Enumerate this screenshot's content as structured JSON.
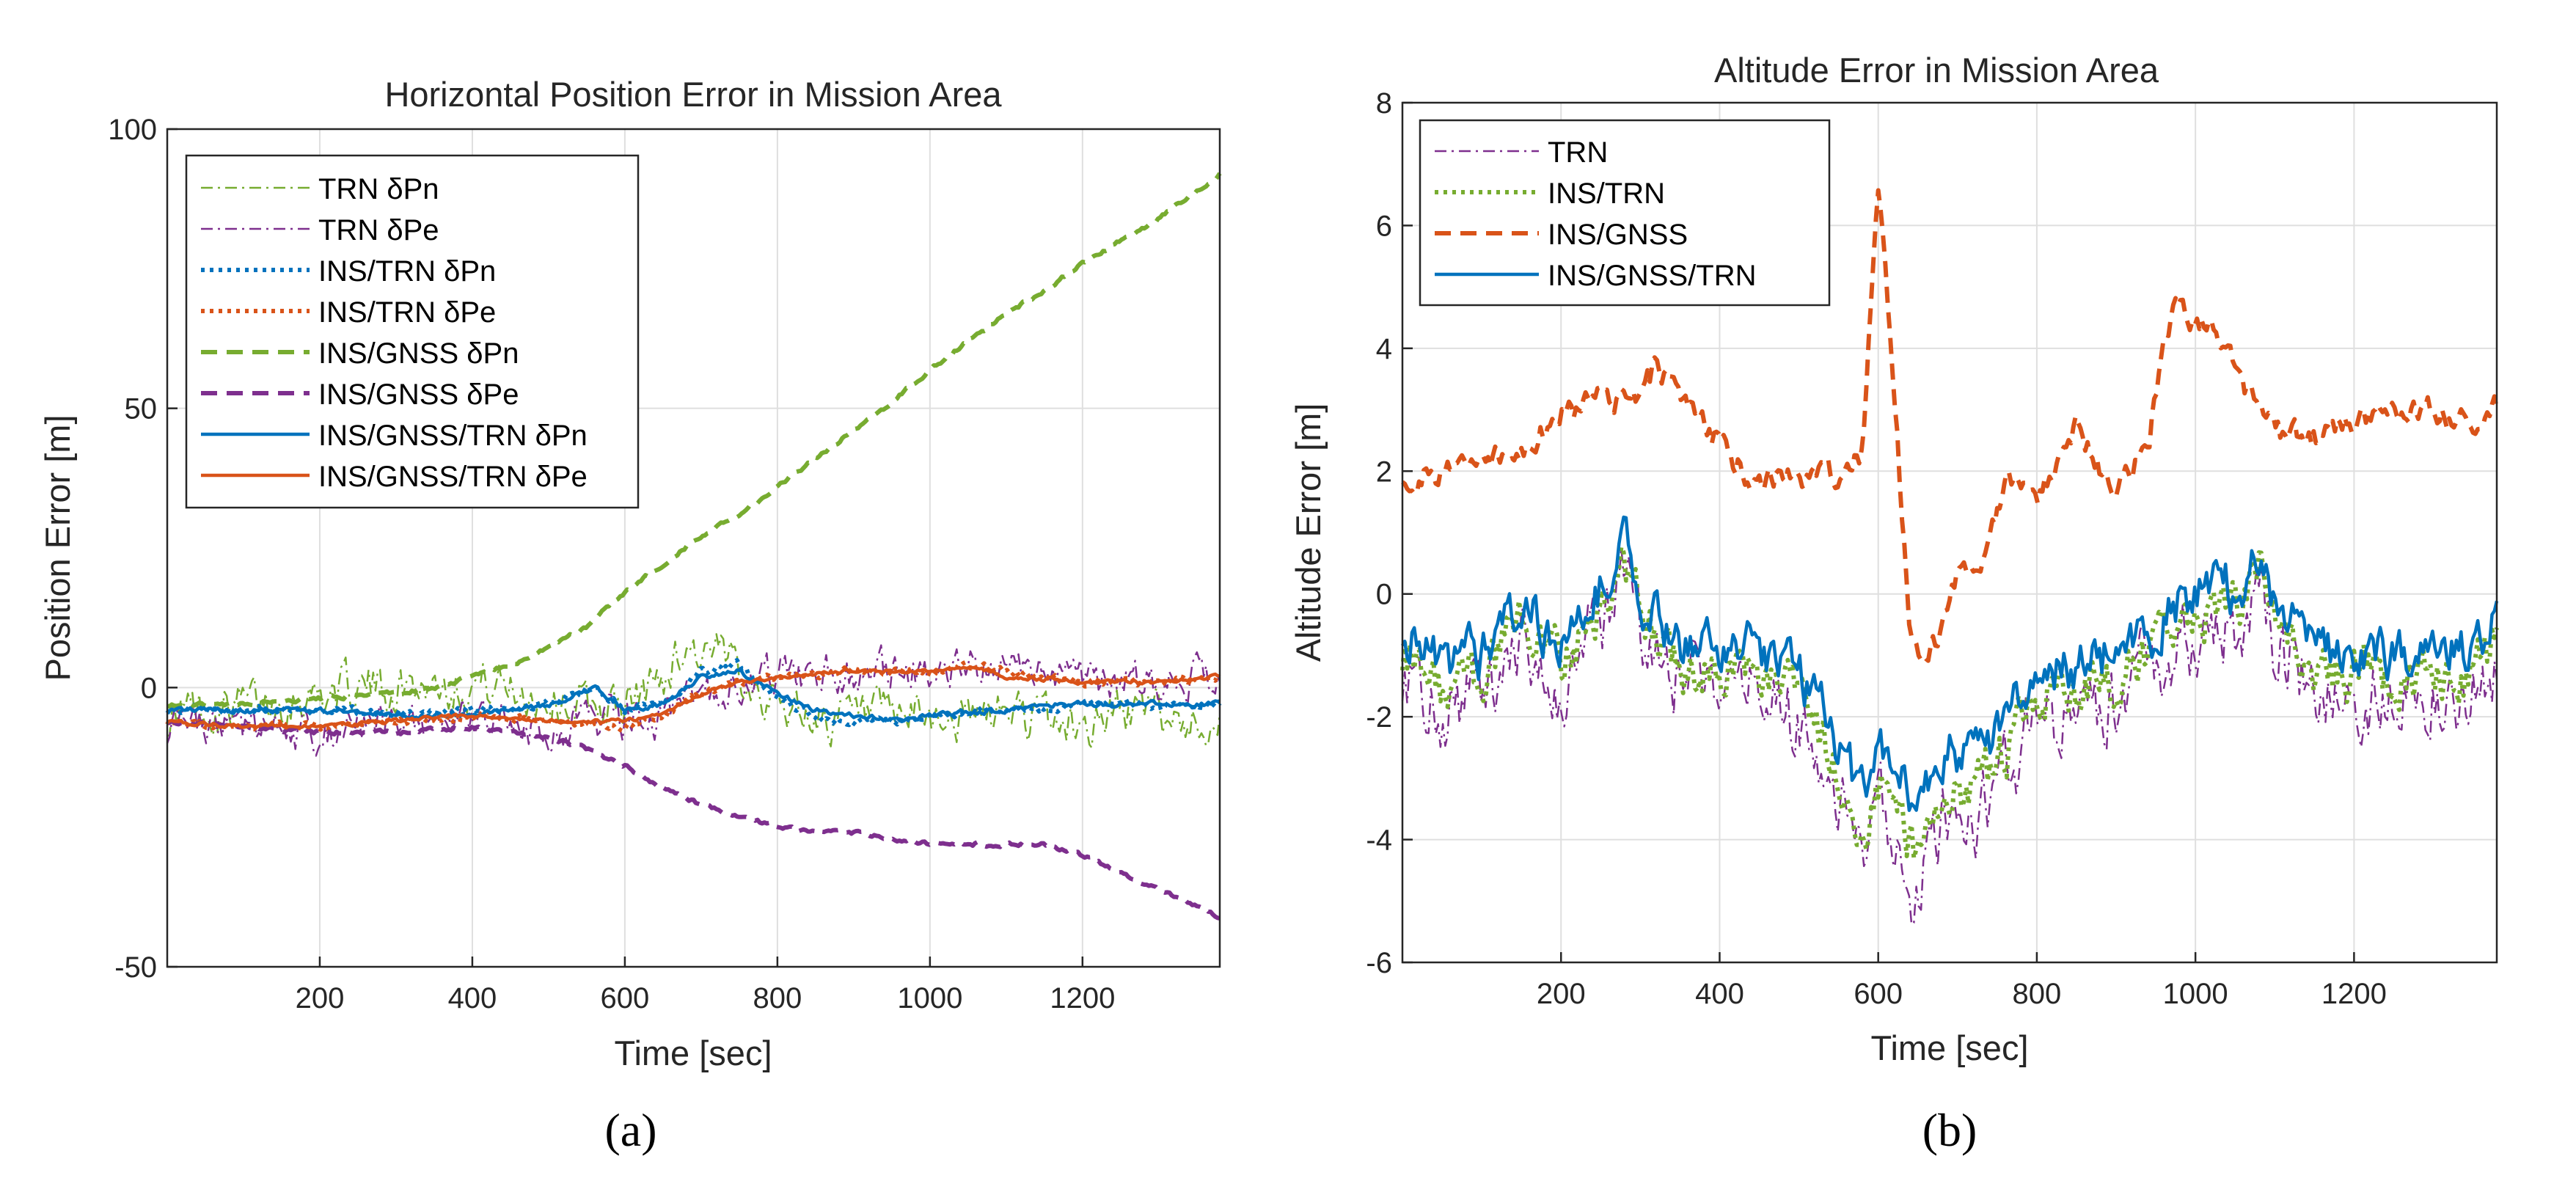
{
  "chart_data": [
    {
      "type": "line",
      "panel_label": "(a)",
      "title": "Horizontal Position Error in Mission Area",
      "xlabel": "Time [sec]",
      "ylabel": "Position Error [m]",
      "xlim": [
        0,
        1380
      ],
      "ylim": [
        -50,
        100
      ],
      "xticks": [
        200,
        400,
        600,
        800,
        1000,
        1200
      ],
      "yticks": [
        -50,
        0,
        50,
        100
      ],
      "grid": true,
      "legend_location": "top-left",
      "series": [
        {
          "name": "TRN δPn",
          "color": "#77ac30",
          "style": "dashdot",
          "width": 2.5,
          "x": [
            0,
            50,
            100,
            150,
            200,
            250,
            300,
            350,
            400,
            450,
            500,
            550,
            600,
            650,
            680,
            700,
            750,
            800,
            850,
            900,
            950,
            1000,
            1050,
            1100,
            1150,
            1200,
            1250,
            1300,
            1350,
            1380
          ],
          "y": [
            -5,
            -4,
            -3,
            -2,
            -1,
            0,
            0,
            1,
            1,
            0,
            -2,
            -3,
            -4,
            2,
            8,
            6,
            4,
            -3,
            -5,
            -6,
            -6,
            -5,
            -6,
            -4,
            -6,
            -7,
            -4,
            -5,
            -6,
            -5
          ],
          "noise": 3.5
        },
        {
          "name": "TRN δPe",
          "color": "#7e2f8e",
          "style": "dashdot",
          "width": 2.5,
          "x": [
            0,
            100,
            200,
            300,
            400,
            500,
            600,
            650,
            700,
            750,
            800,
            900,
            1000,
            1050,
            1100,
            1200,
            1300,
            1380
          ],
          "y": [
            -7,
            -8,
            -8,
            -7,
            -6,
            -7,
            -6,
            -5,
            -1,
            1,
            2,
            3,
            3,
            5,
            3,
            1,
            1,
            2
          ],
          "noise": 3
        },
        {
          "name": "INS/TRN δPn",
          "color": "#0072bd",
          "style": "dotted",
          "width": 6,
          "x": [
            0,
            100,
            200,
            300,
            400,
            500,
            560,
            600,
            650,
            700,
            750,
            800,
            850,
            900,
            950,
            1000,
            1100,
            1150,
            1200,
            1300,
            1380
          ],
          "y": [
            -4,
            -4,
            -4,
            -5,
            -4,
            -3,
            0,
            -4,
            -3,
            3,
            4,
            -2,
            -5,
            -6,
            -6,
            -5,
            -4,
            -4,
            -3,
            -3,
            -3
          ],
          "noise": 0.6
        },
        {
          "name": "INS/TRN δPe",
          "color": "#d95319",
          "style": "dotted",
          "width": 6,
          "x": [
            0,
            100,
            200,
            300,
            400,
            500,
            600,
            650,
            700,
            750,
            800,
            900,
            1000,
            1050,
            1100,
            1200,
            1300,
            1380
          ],
          "y": [
            -6,
            -7,
            -7,
            -6,
            -5,
            -6,
            -7,
            -5,
            -1,
            1,
            2,
            3,
            3,
            4,
            3,
            1,
            1,
            2
          ],
          "noise": 0.6
        },
        {
          "name": "INS/GNSS δPn",
          "color": "#77ac30",
          "style": "dashed",
          "width": 6,
          "x": [
            0,
            100,
            200,
            300,
            350,
            400,
            450,
            500,
            550,
            600,
            650,
            700,
            750,
            800,
            850,
            900,
            950,
            1000,
            1050,
            1100,
            1150,
            1200,
            1250,
            1300,
            1350,
            1380
          ],
          "y": [
            -3,
            -3,
            -2,
            -1,
            0,
            2,
            4,
            7,
            11,
            17,
            22,
            27,
            31,
            36,
            41,
            46,
            51,
            57,
            62,
            67,
            71,
            76,
            80,
            84,
            89,
            92
          ],
          "noise": 0.3
        },
        {
          "name": "INS/GNSS δPe",
          "color": "#7e2f8e",
          "style": "dashed",
          "width": 6,
          "x": [
            0,
            100,
            200,
            300,
            400,
            500,
            550,
            600,
            650,
            700,
            750,
            800,
            850,
            900,
            950,
            1000,
            1050,
            1100,
            1150,
            1200,
            1250,
            1300,
            1350,
            1380
          ],
          "y": [
            -6,
            -7,
            -8,
            -8,
            -7,
            -9,
            -11,
            -14,
            -18,
            -21,
            -23,
            -25,
            -26,
            -26,
            -27,
            -28,
            -28,
            -28,
            -28,
            -30,
            -33,
            -36,
            -39,
            -41
          ],
          "noise": 0.3
        },
        {
          "name": "INS/GNSS/TRN δPn",
          "color": "#0072bd",
          "style": "solid",
          "width": 4.5,
          "x": [
            0,
            100,
            200,
            300,
            400,
            450,
            500,
            560,
            600,
            650,
            700,
            750,
            800,
            850,
            900,
            950,
            1000,
            1100,
            1150,
            1200,
            1300,
            1380
          ],
          "y": [
            -4,
            -4,
            -4,
            -5,
            -5,
            -4,
            -3,
            0,
            -4,
            -3,
            2,
            3,
            -1,
            -4,
            -5,
            -6,
            -5,
            -4,
            -3,
            -3,
            -3,
            -3
          ],
          "noise": 0.4
        },
        {
          "name": "INS/GNSS/TRN δPe",
          "color": "#d95319",
          "style": "solid",
          "width": 4.5,
          "x": [
            0,
            100,
            200,
            300,
            400,
            500,
            600,
            650,
            700,
            750,
            800,
            900,
            1000,
            1050,
            1100,
            1200,
            1300,
            1380
          ],
          "y": [
            -6,
            -7,
            -7,
            -6,
            -5,
            -6,
            -6,
            -5,
            -1,
            1,
            2,
            3,
            3,
            4,
            2,
            1,
            1,
            2
          ],
          "noise": 0.3
        }
      ]
    },
    {
      "type": "line",
      "panel_label": "(b)",
      "title": "Altitude Error in Mission Area",
      "xlabel": "Time [sec]",
      "ylabel": "Altitude Error [m]",
      "xlim": [
        0,
        1380
      ],
      "ylim": [
        -6,
        8
      ],
      "xticks": [
        200,
        400,
        600,
        800,
        1000,
        1200
      ],
      "yticks": [
        -6,
        -4,
        -2,
        0,
        2,
        4,
        6,
        8
      ],
      "grid": true,
      "legend_location": "top-left",
      "series": [
        {
          "name": "TRN",
          "color": "#7e2f8e",
          "style": "dashdot",
          "width": 2.5,
          "x": [
            0,
            50,
            100,
            150,
            200,
            250,
            280,
            300,
            350,
            400,
            450,
            500,
            550,
            580,
            600,
            630,
            650,
            680,
            720,
            760,
            800,
            850,
            900,
            950,
            1000,
            1050,
            1080,
            1100,
            1150,
            1200,
            1250,
            1300,
            1350,
            1380
          ],
          "y": [
            -1.2,
            -2.0,
            -1.8,
            -0.8,
            -1.5,
            -0.5,
            0.4,
            -0.6,
            -1.6,
            -1.5,
            -1.6,
            -2.2,
            -3.2,
            -4.6,
            -3.6,
            -4.3,
            -5.0,
            -3.6,
            -3.8,
            -3.0,
            -2.0,
            -2.0,
            -1.6,
            -1.3,
            -0.6,
            -0.6,
            0.3,
            -0.8,
            -1.6,
            -1.6,
            -1.8,
            -1.6,
            -1.6,
            -1.0
          ],
          "noise": 0.55
        },
        {
          "name": "INS/TRN",
          "color": "#77ac30",
          "style": "dotted",
          "width": 6,
          "x": [
            0,
            50,
            100,
            150,
            200,
            250,
            280,
            300,
            350,
            400,
            450,
            500,
            550,
            580,
            600,
            630,
            650,
            680,
            720,
            760,
            800,
            850,
            900,
            950,
            1000,
            1050,
            1080,
            1100,
            1150,
            1200,
            1250,
            1300,
            1350,
            1380
          ],
          "y": [
            -0.9,
            -1.6,
            -1.4,
            -0.5,
            -1.2,
            -0.2,
            0.6,
            -0.3,
            -1.3,
            -1.2,
            -1.3,
            -1.8,
            -2.8,
            -4.0,
            -3.1,
            -3.7,
            -4.4,
            -3.1,
            -3.3,
            -2.6,
            -1.7,
            -1.7,
            -1.3,
            -1.0,
            -0.3,
            -0.3,
            0.5,
            -0.5,
            -1.3,
            -1.3,
            -1.5,
            -1.3,
            -1.3,
            -0.7
          ],
          "noise": 0.35
        },
        {
          "name": "INS/GNSS",
          "color": "#d95319",
          "style": "dashed",
          "width": 6,
          "x": [
            0,
            50,
            100,
            150,
            200,
            250,
            300,
            320,
            350,
            400,
            450,
            500,
            550,
            580,
            600,
            620,
            640,
            660,
            680,
            700,
            740,
            760,
            800,
            850,
            900,
            940,
            960,
            980,
            1000,
            1030,
            1060,
            1100,
            1150,
            1200,
            1250,
            1300,
            1350,
            1380
          ],
          "y": [
            2.0,
            1.9,
            2.2,
            2.4,
            2.9,
            3.2,
            3.1,
            3.7,
            3.2,
            2.4,
            1.8,
            1.9,
            2.0,
            2.3,
            6.5,
            3.5,
            -0.8,
            -1.3,
            -0.5,
            0.3,
            0.7,
            1.9,
            1.5,
            2.7,
            1.7,
            2.3,
            4.2,
            4.7,
            4.5,
            4.2,
            3.4,
            2.6,
            2.6,
            2.8,
            3.1,
            3.0,
            2.8,
            3.0
          ],
          "noise": 0.18
        },
        {
          "name": "INS/GNSS/TRN",
          "color": "#0072bd",
          "style": "solid",
          "width": 4.5,
          "x": [
            0,
            50,
            100,
            150,
            200,
            250,
            280,
            300,
            350,
            400,
            450,
            500,
            550,
            580,
            600,
            630,
            650,
            680,
            720,
            760,
            800,
            850,
            900,
            950,
            1000,
            1050,
            1080,
            1100,
            1150,
            1200,
            1250,
            1300,
            1350,
            1380
          ],
          "y": [
            -0.5,
            -1.2,
            -1.0,
            -0.1,
            -0.8,
            0.2,
            0.8,
            0.0,
            -0.9,
            -0.8,
            -0.9,
            -1.4,
            -2.4,
            -3.3,
            -2.6,
            -3.0,
            -3.7,
            -2.5,
            -2.7,
            -2.1,
            -1.2,
            -1.2,
            -0.9,
            -0.6,
            0.1,
            0.1,
            0.7,
            -0.1,
            -0.9,
            -0.9,
            -1.1,
            -0.9,
            -0.9,
            -0.3
          ],
          "noise": 0.35
        }
      ]
    }
  ]
}
